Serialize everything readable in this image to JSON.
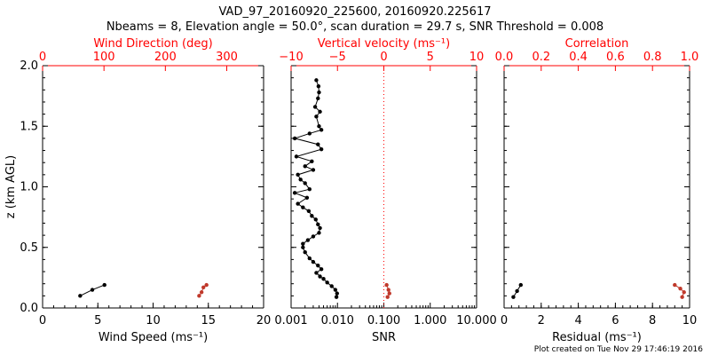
{
  "title": {
    "line1": "VAD_97_20160920_225600, 20160920.225617",
    "line2": "Nbeams = 8, Elevation angle = 50.0°, scan duration = 29.7 s, SNR Threshold = 0.008"
  },
  "footer": "Plot created on Tue Nov 29 17:46:19 2016",
  "colors": {
    "primary": "#000000",
    "secondary": "#c0392b",
    "axis_secondary": "#ff0000"
  },
  "chart_data": [
    {
      "type": "line",
      "panel": "wind",
      "ylabel": "z (km AGL)",
      "ylim": [
        0.0,
        2.0
      ],
      "yticks": [
        "0.0",
        "0.5",
        "1.0",
        "1.5",
        "2.0"
      ],
      "xlabel": "Wind Speed (ms⁻¹)",
      "xlim": [
        0,
        20
      ],
      "xticks": [
        "0",
        "5",
        "10",
        "15",
        "20"
      ],
      "top_xlabel": "Wind Direction (deg)",
      "top_xlim": [
        0,
        360
      ],
      "top_xticks": [
        "0",
        "100",
        "200",
        "300"
      ],
      "series": [
        {
          "axis": "bottom",
          "color": "#000000",
          "x": [
            3.4,
            4.5,
            5.6
          ],
          "y": [
            0.1,
            0.15,
            0.19
          ]
        },
        {
          "axis": "top",
          "color": "#c0392b",
          "x": [
            255,
            259,
            262,
            267
          ],
          "y": [
            0.1,
            0.13,
            0.17,
            0.19
          ]
        }
      ]
    },
    {
      "type": "line",
      "panel": "snr",
      "xscale": "log",
      "xlabel": "SNR",
      "xlim": [
        0.001,
        10
      ],
      "xticks": [
        "0.001",
        "0.010",
        "0.100",
        "1.000",
        "10.000"
      ],
      "top_xlabel": "Vertical velocity (ms⁻¹)",
      "top_xlim": [
        -10,
        10
      ],
      "top_xticks": [
        "−10",
        "−5",
        "0",
        "5",
        "10"
      ],
      "reference_line_top_x": 0,
      "ylim": [
        0.0,
        2.0
      ],
      "series": [
        {
          "axis": "bottom",
          "color": "#000000",
          "x": [
            0.0095,
            0.0098,
            0.009,
            0.0075,
            0.006,
            0.005,
            0.0042,
            0.0035,
            0.0045,
            0.0038,
            0.003,
            0.0025,
            0.002,
            0.0018,
            0.0018,
            0.0023,
            0.003,
            0.004,
            0.0042,
            0.0038,
            0.0034,
            0.0028,
            0.0024,
            0.0018,
            0.0014,
            0.0022,
            0.0012,
            0.0025,
            0.002,
            0.0016,
            0.0014,
            0.003,
            0.002,
            0.0028,
            0.0013,
            0.0045,
            0.0038,
            0.0012,
            0.0025,
            0.0045,
            0.004,
            0.0035,
            0.0042,
            0.0033,
            0.0038,
            0.004,
            0.0039,
            0.0035
          ],
          "y": [
            0.09,
            0.12,
            0.15,
            0.18,
            0.21,
            0.24,
            0.26,
            0.29,
            0.32,
            0.35,
            0.38,
            0.41,
            0.46,
            0.5,
            0.53,
            0.56,
            0.59,
            0.62,
            0.66,
            0.69,
            0.73,
            0.76,
            0.8,
            0.83,
            0.86,
            0.91,
            0.95,
            0.98,
            1.03,
            1.06,
            1.1,
            1.14,
            1.17,
            1.21,
            1.25,
            1.31,
            1.35,
            1.4,
            1.44,
            1.47,
            1.5,
            1.58,
            1.62,
            1.66,
            1.73,
            1.78,
            1.83,
            1.88
          ]
        },
        {
          "axis": "top",
          "color": "#c0392b",
          "x": [
            0.4,
            0.6,
            0.5,
            0.3
          ],
          "y": [
            0.09,
            0.12,
            0.15,
            0.19
          ]
        }
      ]
    },
    {
      "type": "line",
      "panel": "residual",
      "xlabel": "Residual (ms⁻¹)",
      "xlim": [
        0,
        10
      ],
      "xticks": [
        "0",
        "2",
        "4",
        "6",
        "8",
        "10"
      ],
      "top_xlabel": "Correlation",
      "top_xlim": [
        0.0,
        1.0
      ],
      "top_xticks": [
        "0.0",
        "0.2",
        "0.4",
        "0.6",
        "0.8",
        "1.0"
      ],
      "ylim": [
        0.0,
        2.0
      ],
      "series": [
        {
          "axis": "bottom",
          "color": "#000000",
          "x": [
            0.5,
            0.7,
            0.9
          ],
          "y": [
            0.09,
            0.14,
            0.19
          ]
        },
        {
          "axis": "top",
          "color": "#c0392b",
          "x": [
            0.92,
            0.95,
            0.97,
            0.96
          ],
          "y": [
            0.19,
            0.16,
            0.13,
            0.09
          ]
        }
      ]
    }
  ]
}
